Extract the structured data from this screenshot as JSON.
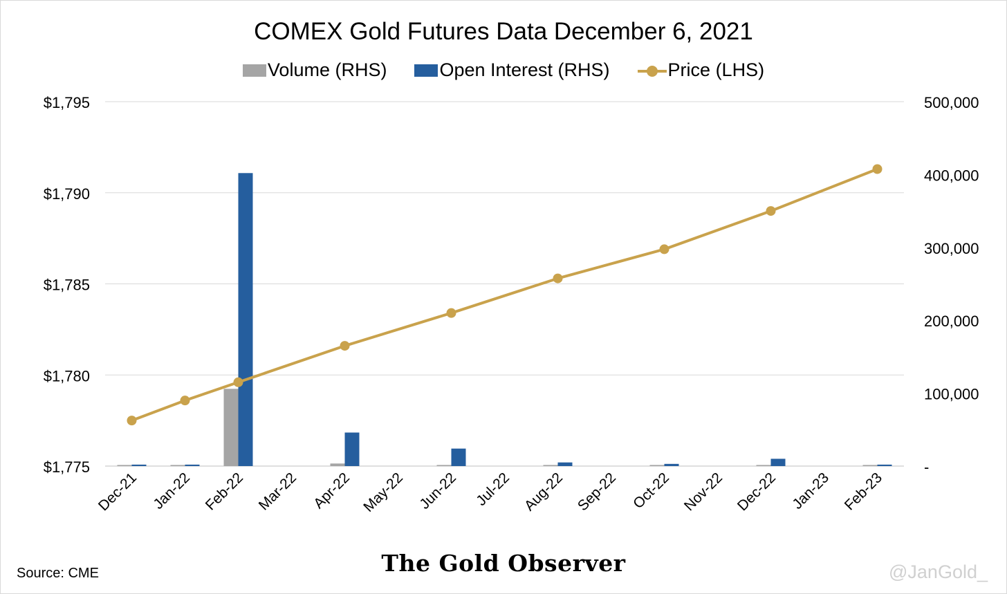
{
  "chart_data": {
    "type": "bar",
    "title": "COMEX Gold Futures Data December 6, 2021",
    "categories": [
      "Dec-21",
      "Jan-22",
      "Feb-22",
      "Mar-22",
      "Apr-22",
      "May-22",
      "Jun-22",
      "Jul-22",
      "Aug-22",
      "Sep-22",
      "Oct-22",
      "Nov-22",
      "Dec-22",
      "Jan-23",
      "Feb-23"
    ],
    "left_axis": {
      "ylim": [
        1775,
        1795
      ],
      "ticks": [
        "$1,775",
        "$1,780",
        "$1,785",
        "$1,790",
        "$1,795"
      ],
      "tick_values": [
        1775,
        1780,
        1785,
        1790,
        1795
      ]
    },
    "right_axis": {
      "ylim": [
        0,
        500000
      ],
      "ticks": [
        "-",
        "100,000",
        "200,000",
        "300,000",
        "400,000",
        "500,000"
      ],
      "tick_values": [
        0,
        100000,
        200000,
        300000,
        400000,
        500000
      ]
    },
    "grid": true,
    "legend_position": "top",
    "series": [
      {
        "name": "Volume (RHS)",
        "type": "bar",
        "axis": "right",
        "color": "#a5a5a5",
        "values": [
          1500,
          1500,
          106000,
          null,
          3500,
          null,
          1500,
          null,
          1500,
          null,
          1500,
          null,
          1500,
          null,
          1500
        ]
      },
      {
        "name": "Open Interest (RHS)",
        "type": "bar",
        "axis": "right",
        "color": "#255e9e",
        "values": [
          2000,
          2000,
          402000,
          null,
          46000,
          null,
          24000,
          null,
          5000,
          null,
          3000,
          null,
          10000,
          null,
          2000
        ]
      },
      {
        "name": "Price (LHS)",
        "type": "line",
        "axis": "left",
        "color": "#c9a24c",
        "values": [
          1777.5,
          1778.6,
          1779.6,
          null,
          1781.6,
          null,
          1783.4,
          null,
          1785.3,
          null,
          1786.9,
          null,
          1789.0,
          null,
          1791.3
        ]
      }
    ]
  },
  "footer": {
    "source": "Source: CME",
    "brand": "The Gold Observer",
    "watermark": "@JanGold_"
  }
}
